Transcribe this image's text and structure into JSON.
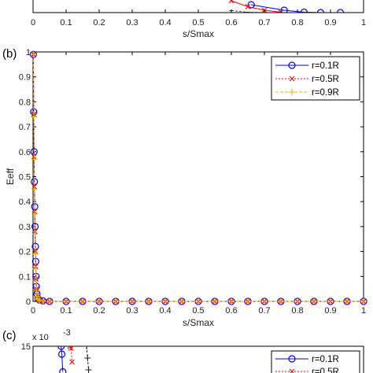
{
  "chart_data": [
    {
      "panel_label": "",
      "type": "line",
      "xlabel": "s/Smax",
      "ylabel": "",
      "xlim": [
        0,
        1
      ],
      "xticks": [
        "0",
        "0.1",
        "0.2",
        "0.3",
        "0.4",
        "0.5",
        "0.6",
        "0.7",
        "0.8",
        "0.9",
        "1"
      ],
      "series": [
        {
          "color": "#0000ff",
          "marker": "circle",
          "x": [
            0.66,
            0.76,
            0.82,
            0.87,
            0.93
          ],
          "y": [
            0.02,
            0.006,
            0.001,
            0,
            0
          ]
        },
        {
          "color": "#ff0000",
          "marker": "x",
          "x": [
            0.6,
            0.65,
            0.7,
            0.75
          ],
          "y": [
            0.03,
            0.015,
            0.006,
            0.001
          ]
        },
        {
          "color": "#555555",
          "marker": "dash",
          "x": [
            0.6,
            0.65,
            0.7
          ],
          "y": [
            0.005,
            0.001,
            0
          ]
        }
      ]
    },
    {
      "panel_label": "(b)",
      "type": "line",
      "xlabel": "s/Smax",
      "ylabel": "Eeff",
      "xlim": [
        0,
        1
      ],
      "ylim": [
        0,
        1
      ],
      "xticks": [
        "0",
        "0.1",
        "0.2",
        "0.3",
        "0.4",
        "0.5",
        "0.6",
        "0.7",
        "0.8",
        "0.9",
        "1"
      ],
      "yticks": [
        "0",
        "0.1",
        "0.2",
        "0.3",
        "0.4",
        "0.5",
        "0.6",
        "0.7",
        "0.8",
        "0.9",
        "1"
      ],
      "legend_position": "top-right",
      "series": [
        {
          "name": "r=0.1R",
          "color": "#0000ff",
          "marker": "circle",
          "x": [
            0.001,
            0.002,
            0.003,
            0.004,
            0.005,
            0.006,
            0.007,
            0.008,
            0.009,
            0.01,
            0.012,
            0.015,
            0.02,
            0.03,
            0.05,
            0.1,
            0.15,
            0.2,
            0.25,
            0.3,
            0.35,
            0.4,
            0.45,
            0.5,
            0.55,
            0.6,
            0.65,
            0.7,
            0.75,
            0.8,
            0.85,
            0.9,
            0.95,
            1.0
          ],
          "y": [
            0.99,
            0.76,
            0.6,
            0.48,
            0.38,
            0.3,
            0.22,
            0.16,
            0.1,
            0.06,
            0.03,
            0.01,
            0.005,
            0.002,
            0,
            0,
            0,
            0,
            0,
            0,
            0,
            0,
            0,
            0,
            0,
            0,
            0,
            0,
            0,
            0,
            0,
            0,
            0,
            0
          ]
        },
        {
          "name": "r=0.5R",
          "color": "#ff0000",
          "marker": "x",
          "x": [
            0.001,
            0.002,
            0.003,
            0.004,
            0.005,
            0.006,
            0.007,
            0.008,
            0.009,
            0.01,
            0.012,
            0.015,
            0.02,
            0.03,
            0.05,
            0.1,
            0.15,
            0.2,
            0.25,
            0.3,
            0.35,
            0.4,
            0.45,
            0.5,
            0.55,
            0.6,
            0.65,
            0.7,
            0.75,
            0.8,
            0.85,
            0.9,
            0.95,
            1.0
          ],
          "y": [
            0.99,
            0.75,
            0.58,
            0.46,
            0.36,
            0.28,
            0.2,
            0.14,
            0.09,
            0.05,
            0.025,
            0.01,
            0.004,
            0.001,
            0,
            0,
            0,
            0,
            0,
            0,
            0,
            0,
            0,
            0,
            0,
            0,
            0,
            0,
            0,
            0,
            0,
            0,
            0,
            0
          ]
        },
        {
          "name": "r=0.9R",
          "color": "#e6b800",
          "marker": "plus",
          "x": [
            0.001,
            0.002,
            0.003,
            0.004,
            0.005,
            0.006,
            0.007,
            0.008,
            0.009,
            0.01,
            0.012,
            0.015,
            0.02,
            0.03,
            0.05,
            0.1,
            0.15,
            0.2,
            0.25,
            0.3,
            0.35,
            0.4,
            0.45,
            0.5,
            0.55,
            0.6,
            0.65,
            0.7,
            0.75,
            0.8,
            0.85,
            0.9,
            0.95,
            1.0
          ],
          "y": [
            0.99,
            0.74,
            0.57,
            0.45,
            0.35,
            0.27,
            0.19,
            0.13,
            0.08,
            0.045,
            0.02,
            0.008,
            0.003,
            0.001,
            0,
            0,
            0,
            0,
            0,
            0,
            0,
            0,
            0,
            0,
            0,
            0,
            0,
            0,
            0,
            0,
            0,
            0,
            0,
            0
          ]
        }
      ]
    },
    {
      "panel_label": "(c)",
      "type": "line",
      "xlabel": "",
      "ylabel": "",
      "ylim": [
        0,
        15
      ],
      "y_exponent": "x 10",
      "y_exponent_power": "-3",
      "yticks": [
        "15"
      ],
      "legend_position": "top-right",
      "legend_visible": [
        "r=0.1R",
        "r=0.5R"
      ],
      "series": [
        {
          "name": "r=0.1R",
          "color": "#0000ff",
          "marker": "circle",
          "x": [
            0.085,
            0.087,
            0.09
          ],
          "y": [
            15,
            13,
            8.5
          ]
        },
        {
          "name": "r=0.5R",
          "color": "#ff0000",
          "marker": "x",
          "x": [
            0.112,
            0.115,
            0.118
          ],
          "y": [
            15,
            14.5,
            11
          ]
        },
        {
          "name": "",
          "color": "#222222",
          "marker": "plus",
          "x": [
            0.162,
            0.165,
            0.168
          ],
          "y": [
            15,
            12,
            9
          ]
        }
      ]
    }
  ]
}
